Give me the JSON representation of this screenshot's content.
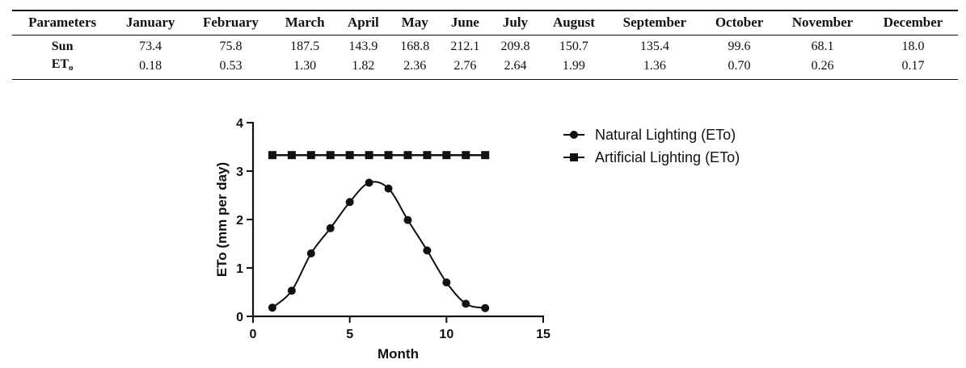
{
  "table": {
    "headers": [
      "Parameters",
      "January",
      "February",
      "March",
      "April",
      "May",
      "June",
      "July",
      "August",
      "September",
      "October",
      "November",
      "December"
    ],
    "rows": [
      {
        "label": "Sun",
        "label_sub": "",
        "values": [
          "73.4",
          "75.8",
          "187.5",
          "143.9",
          "168.8",
          "212.1",
          "209.8",
          "150.7",
          "135.4",
          "99.6",
          "68.1",
          "18.0"
        ]
      },
      {
        "label": "ET",
        "label_sub": "o",
        "values": [
          "0.18",
          "0.53",
          "1.30",
          "1.82",
          "2.36",
          "2.76",
          "2.64",
          "1.99",
          "1.36",
          "0.70",
          "0.26",
          "0.17"
        ]
      }
    ]
  },
  "chart_data": {
    "type": "line",
    "xlabel": "Month",
    "ylabel": "ETo (mm per day)",
    "xlim": [
      0,
      15
    ],
    "ylim": [
      0,
      4
    ],
    "xticks": [
      0,
      5,
      10,
      15
    ],
    "yticks": [
      0,
      1,
      2,
      3,
      4
    ],
    "grid": false,
    "legend_position": "top-right",
    "series": [
      {
        "name": "Natural Lighting (ETo)",
        "marker": "circle",
        "smooth": true,
        "x": [
          1,
          2,
          3,
          4,
          5,
          6,
          7,
          8,
          9,
          10,
          11,
          12
        ],
        "y": [
          0.18,
          0.53,
          1.3,
          1.82,
          2.36,
          2.76,
          2.64,
          1.99,
          1.36,
          0.7,
          0.26,
          0.17
        ]
      },
      {
        "name": "Artificial Lighting (ETo)",
        "marker": "square",
        "smooth": false,
        "x": [
          1,
          2,
          3,
          4,
          5,
          6,
          7,
          8,
          9,
          10,
          11,
          12
        ],
        "y": [
          3.33,
          3.33,
          3.33,
          3.33,
          3.33,
          3.33,
          3.33,
          3.33,
          3.33,
          3.33,
          3.33,
          3.33
        ]
      }
    ]
  }
}
